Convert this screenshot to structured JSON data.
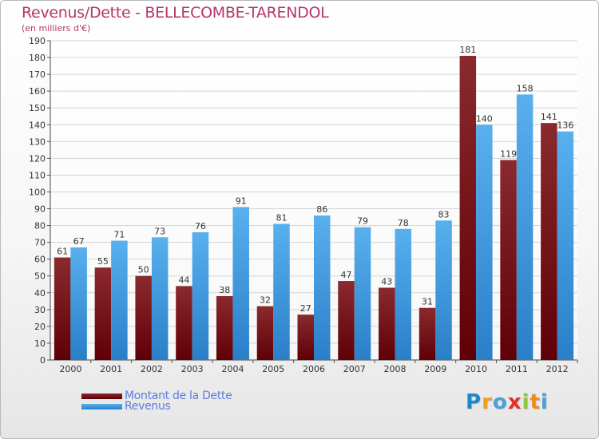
{
  "header": {
    "title": "Revenus/Dette - BELLECOMBE-TARENDOL",
    "subtitle": "(en milliers d'€)"
  },
  "legend": {
    "items": [
      {
        "label": "Montant de la Dette",
        "color": "#7a0c12"
      },
      {
        "label": "Revenus",
        "color": "#3ea0e6"
      }
    ]
  },
  "logo": {
    "letters": [
      {
        "char": "P",
        "color": "#1e87c8"
      },
      {
        "char": "r",
        "color": "#f0a020"
      },
      {
        "char": "o",
        "color": "#4a9fd8"
      },
      {
        "char": "x",
        "color": "#e5302a"
      },
      {
        "char": "i",
        "color": "#8dc63f"
      },
      {
        "char": "t",
        "color": "#f08c1e"
      },
      {
        "char": "i",
        "color": "#4a9fd8"
      }
    ]
  },
  "chart_data": {
    "type": "bar",
    "title": "Revenus/Dette - BELLECOMBE-TARENDOL",
    "subtitle": "(en milliers d'€)",
    "categories": [
      "2000",
      "2001",
      "2002",
      "2003",
      "2004",
      "2005",
      "2006",
      "2007",
      "2008",
      "2009",
      "2010",
      "2011",
      "2012"
    ],
    "series": [
      {
        "name": "Montant de la Dette",
        "color": "#7a0c12",
        "values": [
          61,
          55,
          50,
          44,
          38,
          32,
          27,
          47,
          43,
          31,
          181,
          119,
          141
        ]
      },
      {
        "name": "Revenus",
        "color": "#3ea0e6",
        "values": [
          67,
          71,
          73,
          76,
          91,
          81,
          86,
          79,
          78,
          83,
          140,
          158,
          136
        ]
      }
    ],
    "ylim": [
      0,
      190
    ],
    "ytick_step": 10,
    "grid": true,
    "legend_position": "bottom-left"
  }
}
